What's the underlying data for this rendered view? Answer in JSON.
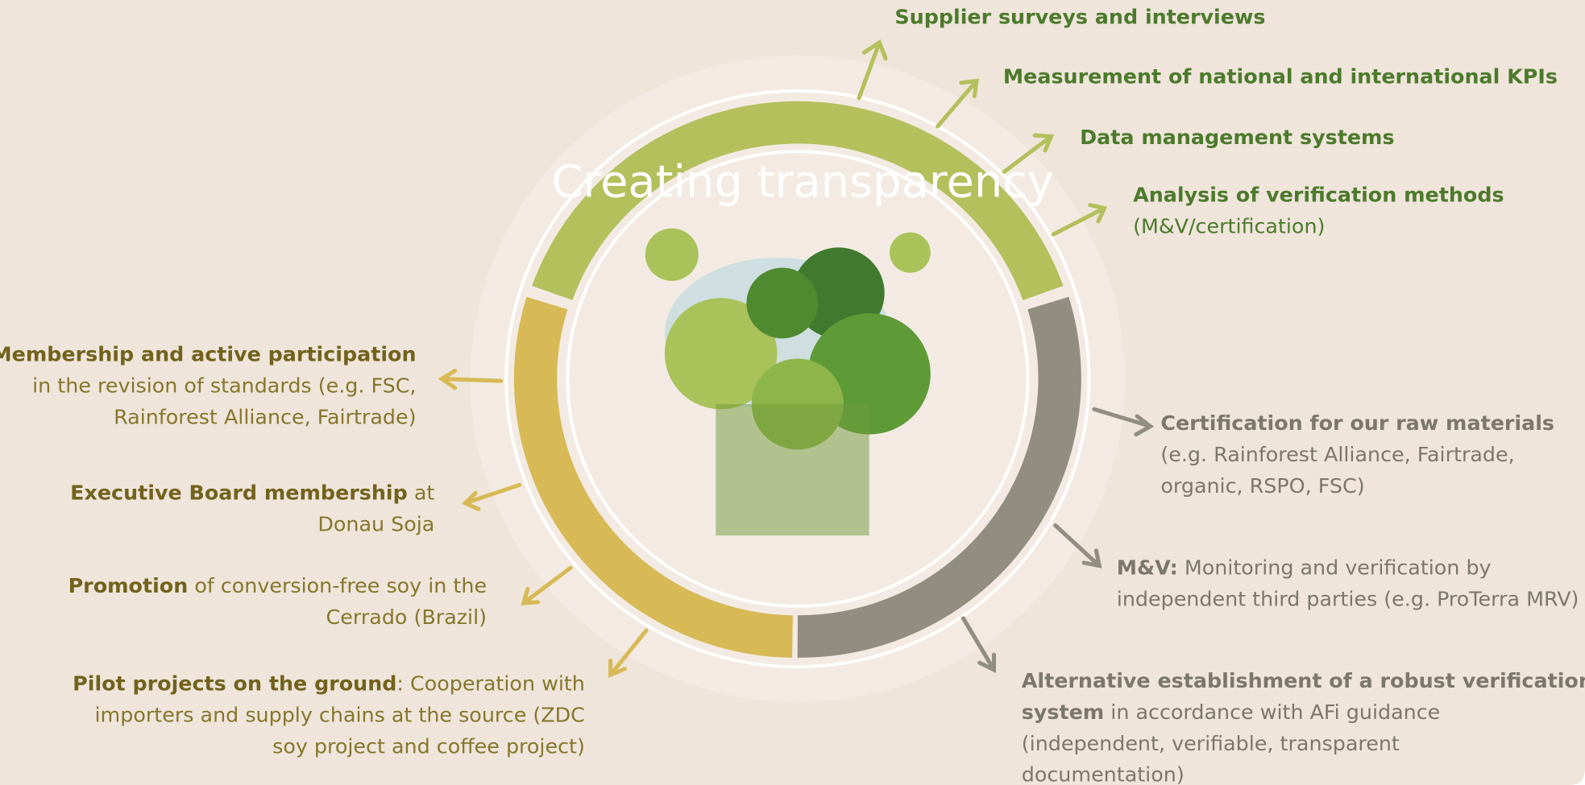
{
  "ring_label": "Creating transparency",
  "left_items": [
    {
      "lines": [
        [
          {
            "text": "Membership and active participation",
            "strong": true
          }
        ],
        [
          {
            "text": "in the revision of standards (e.g. FSC,",
            "strong": false
          }
        ],
        [
          {
            "text": "Rainforest Alliance, Fairtrade)",
            "strong": false
          }
        ]
      ]
    },
    {
      "lines": [
        [
          {
            "text": "Executive Board membership",
            "strong": true
          },
          {
            "text": " at",
            "strong": false
          }
        ],
        [
          {
            "text": "Donau Soja",
            "strong": false
          }
        ]
      ]
    },
    {
      "lines": [
        [
          {
            "text": "Promotion",
            "strong": true
          },
          {
            "text": " of conversion-free soy in the",
            "strong": false
          }
        ],
        [
          {
            "text": "Cerrado (Brazil)",
            "strong": false
          }
        ]
      ]
    },
    {
      "lines": [
        [
          {
            "text": "Pilot projects on the ground",
            "strong": true
          },
          {
            "text": ": Cooperation with",
            "strong": false
          }
        ],
        [
          {
            "text": "importers and supply chains at the source (ZDC",
            "strong": false
          }
        ],
        [
          {
            "text": "soy project and coffee project)",
            "strong": false
          }
        ]
      ]
    }
  ],
  "green_items": [
    {
      "lines": [
        [
          {
            "text": "Supplier surveys and interviews",
            "strong": true
          }
        ]
      ]
    },
    {
      "lines": [
        [
          {
            "text": "Measurement of national and international KPIs",
            "strong": true
          }
        ]
      ]
    },
    {
      "lines": [
        [
          {
            "text": "Data management systems",
            "strong": true
          }
        ]
      ]
    },
    {
      "lines": [
        [
          {
            "text": "Analysis of verification methods",
            "strong": true
          }
        ],
        [
          {
            "text": "(M&V/certification)",
            "strong": false
          }
        ]
      ]
    }
  ],
  "gray_items": [
    {
      "lines": [
        [
          {
            "text": "Certification for our raw materials",
            "strong": true
          }
        ],
        [
          {
            "text": "(e.g. Rainforest Alliance, Fairtrade,",
            "strong": false
          }
        ],
        [
          {
            "text": "organic, RSPO, FSC)",
            "strong": false
          }
        ]
      ]
    },
    {
      "lines": [
        [
          {
            "text": "M&V:",
            "strong": true
          },
          {
            "text": " Monitoring and verification by",
            "strong": false
          }
        ],
        [
          {
            "text": "independent third parties (e.g. ProTerra MRV)",
            "strong": false
          }
        ]
      ]
    },
    {
      "lines": [
        [
          {
            "text": "Alternative establishment of a robust verification",
            "strong": true
          }
        ],
        [
          {
            "text": "system",
            "strong": true
          },
          {
            "text": " in accordance with AFi guidance",
            "strong": false
          }
        ],
        [
          {
            "text": "(independent, verifiable, transparent",
            "strong": false
          }
        ],
        [
          {
            "text": "documentation)",
            "strong": false
          }
        ]
      ]
    }
  ]
}
